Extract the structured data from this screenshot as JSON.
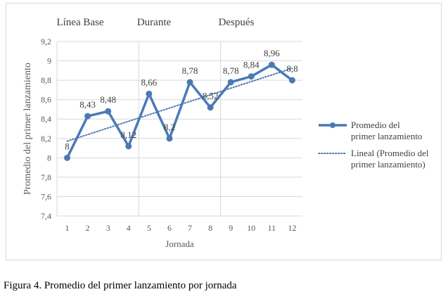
{
  "caption": "Figura 4. Promedio del primer lanzamiento por jornada",
  "chart_data": {
    "type": "line",
    "x": [
      1,
      2,
      3,
      4,
      5,
      6,
      7,
      8,
      9,
      10,
      11,
      12
    ],
    "xlabel": "Jornada",
    "ylabel": "Promedio del primer lanzamiento",
    "ylim": [
      7.4,
      9.2
    ],
    "yticks": [
      7.4,
      7.6,
      7.8,
      8,
      8.2,
      8.4,
      8.6,
      8.8,
      9,
      9.2
    ],
    "ytick_labels": [
      "7,4",
      "7,6",
      "7,8",
      "8",
      "8,2",
      "8,4",
      "8,6",
      "8,8",
      "9",
      "9,2"
    ],
    "grid": true,
    "series": [
      {
        "name": "Promedio del primer lanzamiento",
        "values": [
          8,
          8.43,
          8.48,
          8.12,
          8.66,
          8.2,
          8.78,
          8.52,
          8.78,
          8.84,
          8.96,
          8.8
        ],
        "labels": [
          "8",
          "8,43",
          "8,48",
          "8,12",
          "8,66",
          "8,2",
          "8,78",
          "8,52",
          "8,78",
          "8,84",
          "8,96",
          "8,8"
        ],
        "color": "#4a7ab4",
        "style": "solid-markers"
      },
      {
        "name": "Lineal (Promedio del primer lanzamiento)",
        "trend": "linear",
        "color": "#4a7ab4",
        "style": "dotted"
      }
    ],
    "phases": [
      {
        "label": "Línea Base",
        "x_range": [
          1,
          4
        ]
      },
      {
        "label": "Durante",
        "x_range": [
          5,
          8
        ]
      },
      {
        "label": "Después",
        "x_range": [
          9,
          12
        ]
      }
    ],
    "phase_dividers_after_x": [
      4,
      8
    ],
    "legend_position": "right"
  }
}
